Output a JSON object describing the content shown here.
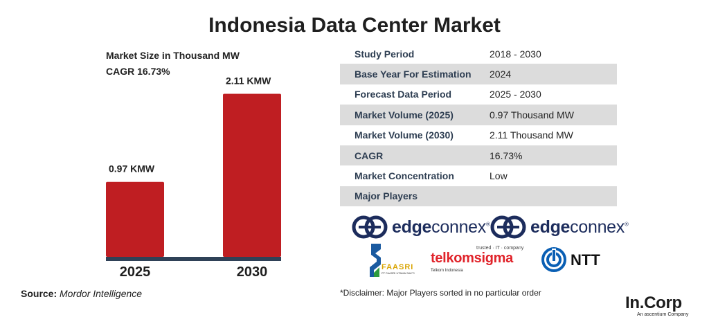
{
  "title": "Indonesia Data Center Market",
  "colors": {
    "bar": "#bf1e22",
    "baseline": "#2f4157",
    "table_shade": "#dcdcdc"
  },
  "chart_data": {
    "type": "bar",
    "title": "Market Size in Thousand MW",
    "subtitle": "CAGR 16.73%",
    "categories": [
      "2025",
      "2030"
    ],
    "values": [
      0.97,
      2.11
    ],
    "value_labels": [
      "0.97 KMW",
      "2.11 KMW"
    ],
    "xlabel": "",
    "ylabel": "",
    "ylim": [
      0,
      2.15
    ],
    "grid": false,
    "legend": "none"
  },
  "source": {
    "label": "Source:",
    "value": "Mordor Intelligence"
  },
  "table": [
    {
      "key": "Study Period",
      "value": "2018 - 2030"
    },
    {
      "key": "Base Year For Estimation",
      "value": "2024"
    },
    {
      "key": "Forecast Data Period",
      "value": "2025 - 2030"
    },
    {
      "key": "Market Volume (2025)",
      "value": "0.97 Thousand MW"
    },
    {
      "key": "Market Volume (2030)",
      "value": "2.11 Thousand MW"
    },
    {
      "key": "CAGR",
      "value": "16.73%"
    },
    {
      "key": "Market Concentration",
      "value": "Low"
    },
    {
      "key": "Major Players",
      "value": ""
    }
  ],
  "players": {
    "edgeconnex_1": {
      "bold": "edge",
      "light": "connex",
      "mark": "®"
    },
    "edgeconnex_2": {
      "bold": "edge",
      "light": "connex",
      "mark": "®"
    },
    "faasri": {
      "name": "FAASRI",
      "sub": "PT FAASRI UTAMA SAKTI"
    },
    "telkomsigma": {
      "top": "trusted · IT · company",
      "name": "telkomsigma",
      "sub": "Telkom Indonesia"
    },
    "ntt": {
      "name": "NTT"
    }
  },
  "disclaimer": "*Disclaimer: Major Players sorted in no particular order",
  "brand": {
    "name": "In.Corp",
    "tagline": "An ascentium Company"
  }
}
